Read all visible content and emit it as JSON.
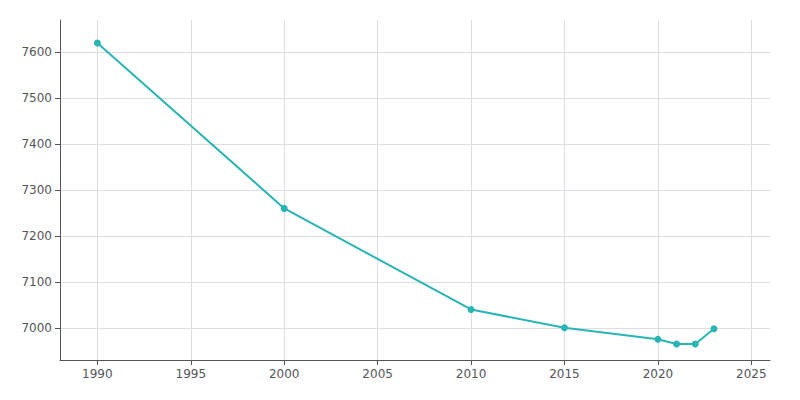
{
  "chart_data": {
    "type": "line",
    "x": [
      1990,
      2000,
      2010,
      2015,
      2020,
      2021,
      2022,
      2023
    ],
    "values": [
      7620,
      7260,
      7040,
      7000,
      6975,
      6965,
      6965,
      6998
    ],
    "color": "#2ab5b5",
    "marker": "circle",
    "xlim": [
      1988,
      2026
    ],
    "ylim": [
      6930,
      7670
    ],
    "xticks": [
      1990,
      1995,
      2000,
      2005,
      2010,
      2015,
      2020,
      2025
    ],
    "yticks": [
      7000,
      7100,
      7200,
      7300,
      7400,
      7500,
      7600
    ],
    "grid": true
  }
}
